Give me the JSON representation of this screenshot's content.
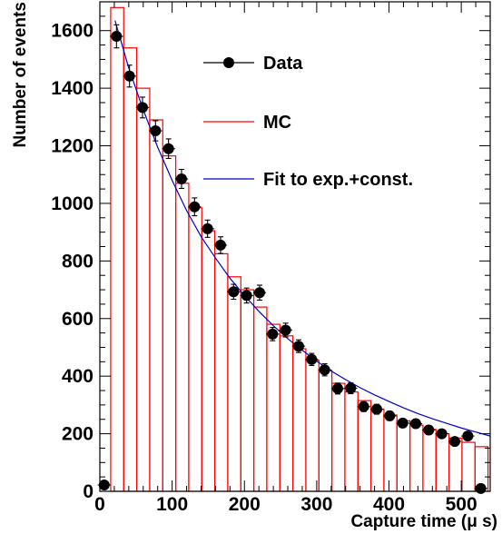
{
  "chart_data": {
    "type": "scatter",
    "xlabel": "Capture time (μ s)",
    "ylabel": "Number of events",
    "xlim": [
      0,
      540
    ],
    "ylim": [
      0,
      1700
    ],
    "x_ticks": [
      0,
      100,
      200,
      300,
      400,
      500
    ],
    "y_ticks": [
      0,
      200,
      400,
      600,
      800,
      1000,
      1200,
      1400,
      1600
    ],
    "x_tick_labels": [
      "0",
      "100",
      "200",
      "300",
      "400",
      "500"
    ],
    "y_tick_labels": [
      "0",
      "200",
      "400",
      "600",
      "800",
      "1000",
      "1200",
      "1400",
      "1600"
    ],
    "grid": false,
    "legend_placement": "top-right",
    "legend": {
      "data_label": "Data",
      "mc_label": "MC",
      "fit_label": "Fit to exp.+const."
    },
    "colors": {
      "data": "#000000",
      "mc": "#ff0000",
      "fit": "#0000cc"
    },
    "series": [
      {
        "name": "Data",
        "kind": "points",
        "x": [
          6,
          23,
          41,
          59,
          77,
          95,
          113,
          131,
          149,
          167,
          185,
          203,
          221,
          239,
          257,
          275,
          293,
          311,
          329,
          347,
          365,
          383,
          401,
          419,
          437,
          455,
          473,
          491,
          509,
          527
        ],
        "y": [
          22,
          1580,
          1442,
          1333,
          1252,
          1190,
          1085,
          988,
          912,
          855,
          693,
          680,
          690,
          546,
          560,
          504,
          458,
          422,
          357,
          358,
          294,
          285,
          262,
          237,
          235,
          213,
          200,
          173,
          192,
          10
        ],
        "err": [
          5,
          40,
          38,
          36,
          35,
          34,
          33,
          31,
          30,
          29,
          26,
          26,
          26,
          23,
          24,
          22,
          21,
          21,
          19,
          19,
          17,
          17,
          16,
          15,
          15,
          15,
          14,
          13,
          14,
          3
        ]
      },
      {
        "name": "MC",
        "kind": "histogram",
        "edges": [
          0,
          15,
          33,
          51,
          69,
          87,
          105,
          123,
          141,
          159,
          177,
          195,
          213,
          231,
          249,
          267,
          285,
          303,
          321,
          339,
          357,
          375,
          393,
          411,
          429,
          447,
          465,
          483,
          501,
          519,
          537
        ],
        "values": [
          0,
          1680,
          1540,
          1400,
          1290,
          1165,
          1070,
          985,
          905,
          825,
          745,
          700,
          640,
          580,
          540,
          495,
          455,
          420,
          375,
          345,
          315,
          285,
          265,
          245,
          230,
          215,
          200,
          185,
          170,
          155
        ]
      },
      {
        "name": "Fit to exp.+const.",
        "kind": "curve",
        "x": [
          21,
          40,
          60,
          80,
          100,
          120,
          140,
          160,
          180,
          200,
          220,
          240,
          260,
          280,
          300,
          320,
          340,
          360,
          380,
          400,
          420,
          440,
          460,
          480,
          500,
          520,
          540
        ],
        "y": [
          1635,
          1470,
          1325,
          1195,
          1080,
          975,
          885,
          810,
          740,
          680,
          625,
          575,
          530,
          490,
          452,
          418,
          388,
          360,
          335,
          312,
          290,
          270,
          252,
          236,
          220,
          206,
          192
        ]
      }
    ]
  }
}
